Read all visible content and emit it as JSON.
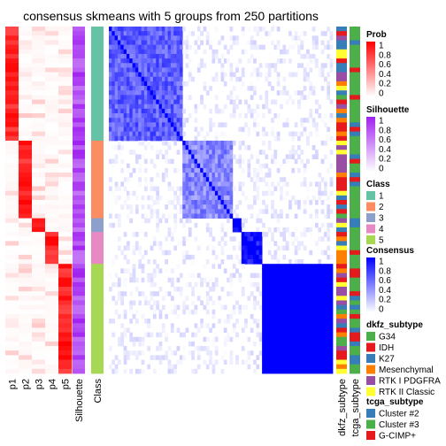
{
  "chart_data": {
    "type": "heatmap",
    "title": "consensus skmeans with 5 groups from 250 partitions",
    "n_samples": 76,
    "groups": [
      {
        "class": 1,
        "size": 25
      },
      {
        "class": 2,
        "size": 17
      },
      {
        "class": 3,
        "size": 3
      },
      {
        "class": 4,
        "size": 7
      },
      {
        "class": 5,
        "size": 24
      }
    ],
    "prob_columns": [
      "p1",
      "p2",
      "p3",
      "p4",
      "p5"
    ],
    "silhouette_label": "Silhouette",
    "class_label": "Class",
    "annotation_columns": [
      "dkfz_subtype",
      "tcga_subtype"
    ],
    "legends": {
      "prob": {
        "title": "Prob",
        "ticks": [
          "1",
          "0.8",
          "0.6",
          "0.4",
          "0.2",
          "0"
        ],
        "range": [
          0,
          1
        ],
        "colors": [
          "#ffffff",
          "#ff0000"
        ]
      },
      "silhouette": {
        "title": "Silhouette",
        "ticks": [
          "1",
          "0.8",
          "0.6",
          "0.4",
          "0.2",
          "0"
        ],
        "range": [
          0,
          1
        ],
        "colors": [
          "#ffffff",
          "#a020f0"
        ]
      },
      "class": {
        "title": "Class",
        "entries": [
          {
            "label": "1",
            "color": "#66c2a5"
          },
          {
            "label": "2",
            "color": "#fc8d62"
          },
          {
            "label": "3",
            "color": "#8da0cb"
          },
          {
            "label": "4",
            "color": "#e78ac3"
          },
          {
            "label": "5",
            "color": "#a6d854"
          }
        ]
      },
      "consensus": {
        "title": "Consensus",
        "ticks": [
          "1",
          "0.8",
          "0.6",
          "0.4",
          "0.2",
          "0"
        ],
        "range": [
          0,
          1
        ],
        "colors": [
          "#ffffff",
          "#0000ff"
        ]
      },
      "dkfz_subtype": {
        "title": "dkfz_subtype",
        "entries": [
          {
            "label": "G34",
            "color": "#4daf4a"
          },
          {
            "label": "IDH",
            "color": "#e41a1c"
          },
          {
            "label": "K27",
            "color": "#377eb8"
          },
          {
            "label": "Mesenchymal",
            "color": "#ff7f00"
          },
          {
            "label": "RTK I PDGFRA",
            "color": "#984ea3"
          },
          {
            "label": "RTK II Classic",
            "color": "#ffff33"
          }
        ]
      },
      "tcga_subtype": {
        "title": "tcga_subtype",
        "entries": [
          {
            "label": "Cluster #2",
            "color": "#377eb8"
          },
          {
            "label": "Cluster #3",
            "color": "#4daf4a"
          },
          {
            "label": "G-CIMP+",
            "color": "#e41a1c"
          }
        ]
      }
    }
  }
}
